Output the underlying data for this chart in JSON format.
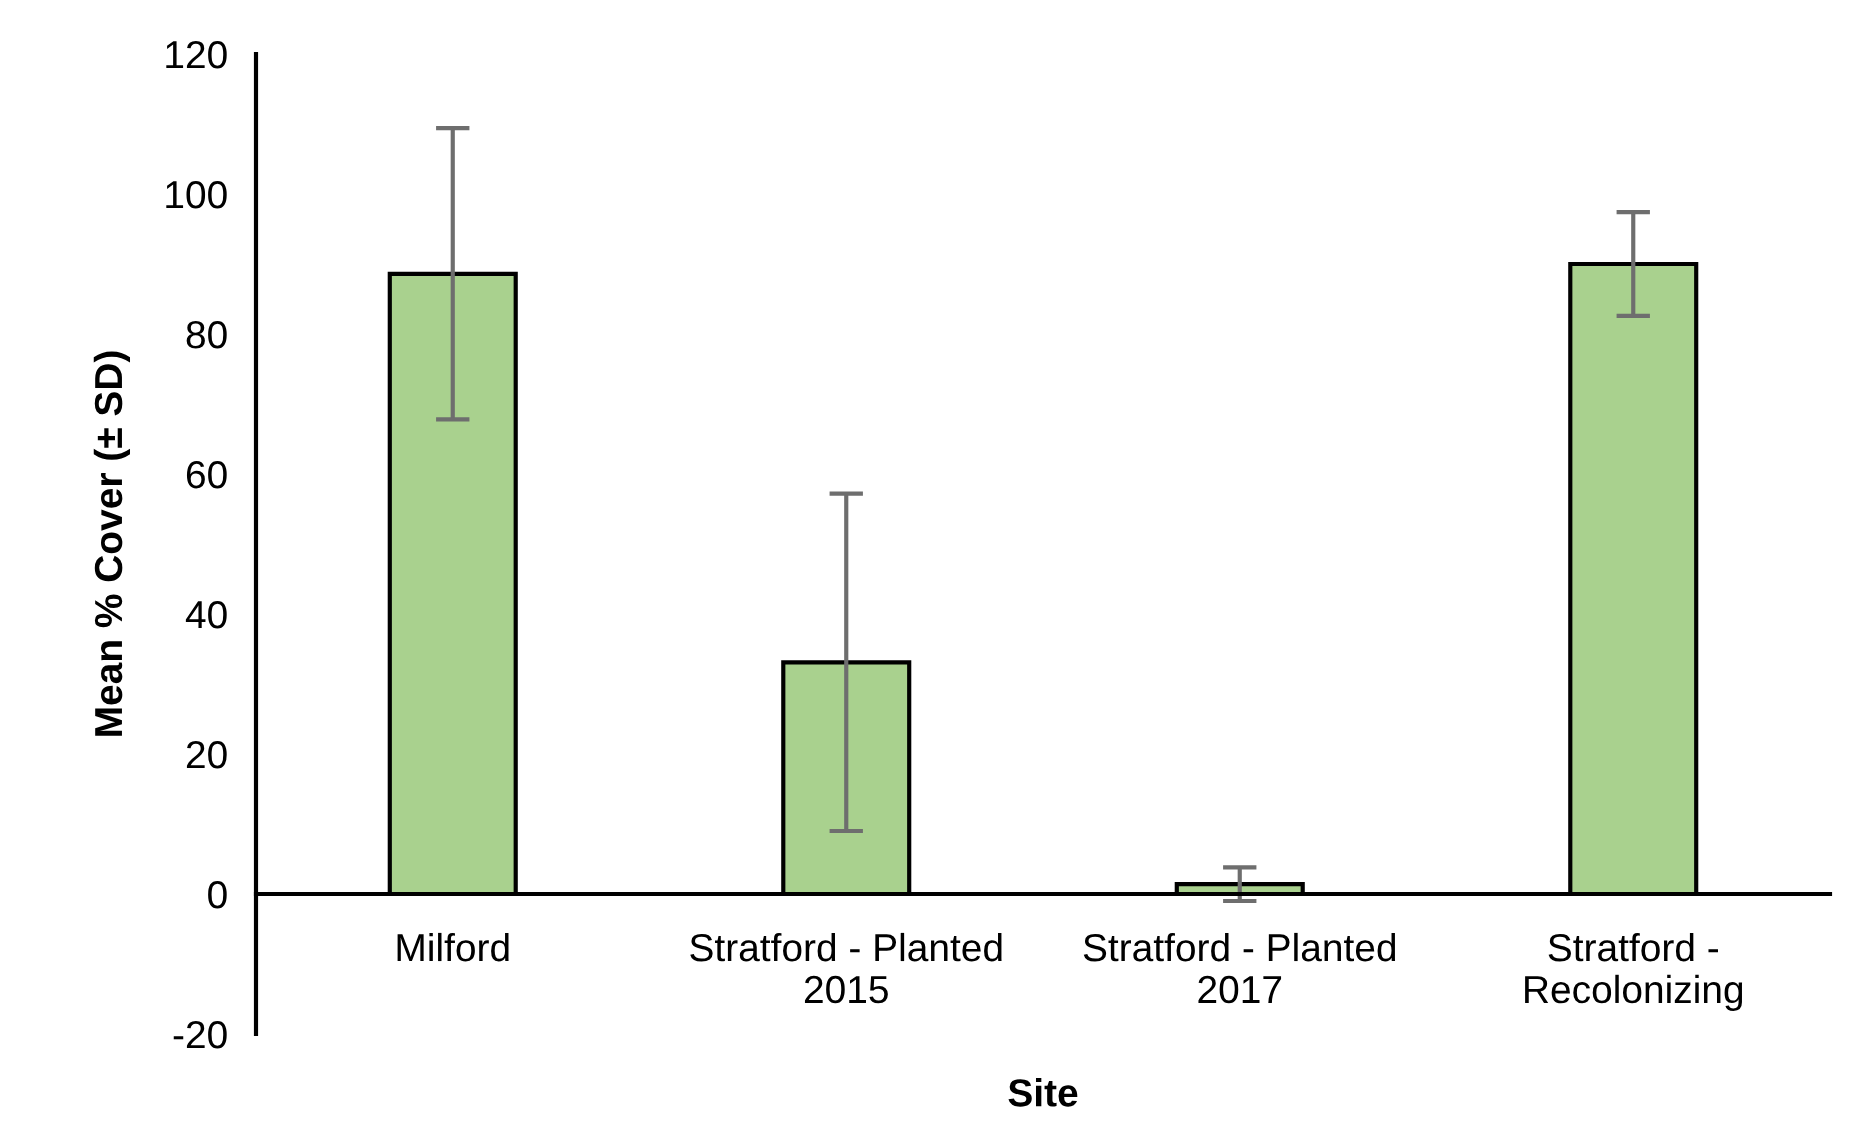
{
  "chart_data": {
    "type": "bar",
    "xlabel": "Site",
    "ylabel": "Mean % Cover (± SD)",
    "categories": [
      "Milford",
      "Stratford - Planted\n2015",
      "Stratford - Planted\n2017",
      "Stratford -\nRecolonizing"
    ],
    "series": [
      {
        "color": "#a9d18e",
        "values": [
          88.6,
          33.1,
          1.4,
          90.0
        ],
        "errors": [
          20.8,
          24.1,
          2.4,
          7.4
        ]
      }
    ],
    "ylim": [
      -20,
      120
    ],
    "yticks": [
      -20,
      0,
      20,
      40,
      60,
      80,
      100,
      120
    ],
    "grid": false,
    "legend": false
  }
}
